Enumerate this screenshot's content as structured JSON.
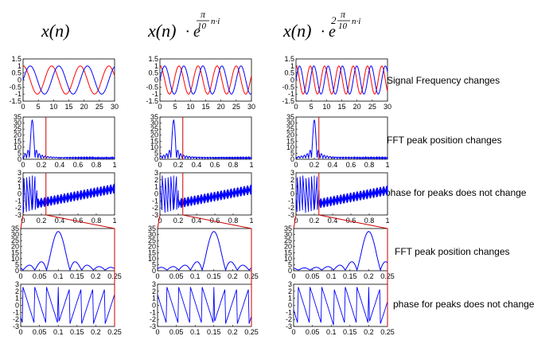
{
  "headers": [
    {
      "base": "x(n)",
      "factor": "",
      "exp_coef": "",
      "exp_num": "",
      "exp_den": "",
      "exp_tail": ""
    },
    {
      "base": "x(n)",
      "factor": "· e",
      "exp_coef": "",
      "exp_num": "π",
      "exp_den": "10",
      "exp_tail": "n·i"
    },
    {
      "base": "x(n)",
      "factor": "· e",
      "exp_coef": "2",
      "exp_num": "π",
      "exp_den": "10",
      "exp_tail": "n·i"
    }
  ],
  "annotations": [
    "Signal Frequency changes",
    "FFT peak position changes",
    "phase for peaks does not change",
    "FFT peak position changes",
    "phase for peaks does not change"
  ],
  "colors": {
    "signal_real": "#ff0000",
    "signal_imag": "#0000ff",
    "zoom_box": "#cc0000",
    "axes": "#000000"
  },
  "chart_data": [
    {
      "type": "line",
      "row": "signal",
      "x_ticks": [
        "0",
        "5",
        "10",
        "15",
        "20",
        "25",
        "30"
      ],
      "y_ticks": [
        "1.5",
        "1",
        "0.5",
        "0",
        "-0.5",
        "-1",
        "-1.5"
      ],
      "xlim": [
        0,
        32
      ],
      "ylim": [
        -1.5,
        1.5
      ],
      "series": [
        {
          "color": "#ff0000",
          "cycles_per_32": [
            3.2,
            4.8,
            6.4
          ]
        },
        {
          "color": "#0000ff",
          "cycles_per_32": [
            3.2,
            4.8,
            6.4
          ],
          "shape": "sine"
        }
      ]
    },
    {
      "type": "line",
      "row": "fft_magnitude",
      "x_ticks": [
        "0",
        "0.2",
        "0.4",
        "0.6",
        "0.8",
        "1"
      ],
      "y_ticks": [
        "35",
        "30",
        "25",
        "20",
        "15",
        "10",
        "5",
        "0"
      ],
      "xlim": [
        0,
        1
      ],
      "ylim": [
        0,
        35
      ],
      "peak_position": [
        0.1,
        0.15,
        0.2
      ],
      "peak_value": 32,
      "zoom_marker_x": 0.25
    },
    {
      "type": "line",
      "row": "phase",
      "x_ticks": [
        "0",
        "0.2",
        "0.4",
        "0.6",
        "0.8",
        "1"
      ],
      "y_ticks": [
        "3",
        "2",
        "1",
        "0",
        "-1",
        "-2",
        "-3"
      ],
      "xlim": [
        0,
        1
      ],
      "ylim": [
        -3,
        3
      ],
      "phase_jump_x": [
        0.1,
        0.15,
        0.2
      ],
      "zoom_marker_x": 0.25
    },
    {
      "type": "line",
      "row": "fft_magnitude_zoom",
      "x_ticks": [
        "0",
        "0.05",
        "0.1",
        "0.15",
        "0.2",
        "0.25"
      ],
      "y_ticks": [
        "35",
        "30",
        "25",
        "20",
        "15",
        "10",
        "5",
        "0"
      ],
      "xlim": [
        0,
        0.25
      ],
      "ylim": [
        0,
        35
      ],
      "peak_position": [
        0.1,
        0.15,
        0.2
      ],
      "peak_value": 32
    },
    {
      "type": "line",
      "row": "phase_zoom",
      "x_ticks": [
        "0",
        "0.05",
        "0.1",
        "0.15",
        "0.2",
        "0.25"
      ],
      "y_ticks": [
        "3",
        "2",
        "1",
        "0",
        "-1",
        "-2",
        "-3"
      ],
      "xlim": [
        0,
        0.25
      ],
      "ylim": [
        -3,
        3
      ],
      "phase_jump_x": [
        0.1,
        0.15,
        0.2
      ]
    }
  ]
}
